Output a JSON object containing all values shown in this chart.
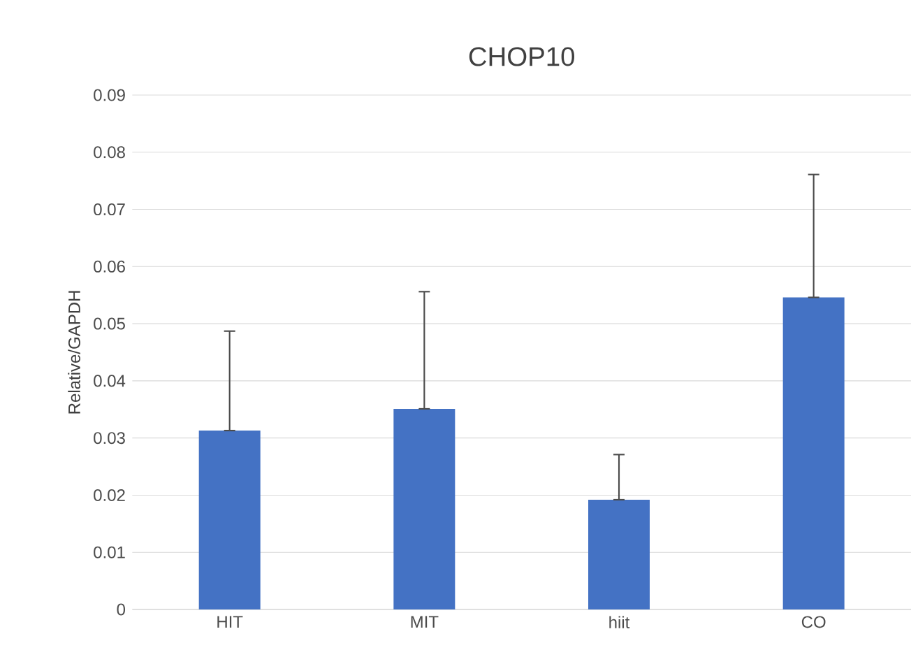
{
  "chart_data": {
    "type": "bar",
    "title": "CHOP10",
    "ylabel": "Relative/GAPDH",
    "categories": [
      "HIT",
      "MIT",
      "hiit",
      "CO"
    ],
    "values": [
      0.0313,
      0.0351,
      0.0192,
      0.0546
    ],
    "errors": [
      [
        0.0313,
        0.0487
      ],
      [
        0.0351,
        0.0556
      ],
      [
        0.0192,
        0.0271
      ],
      [
        0.0546,
        0.0761
      ]
    ],
    "color": "#4472c4",
    "ylim": [
      0,
      0.09
    ],
    "yticks": [
      0,
      0.01,
      0.02,
      0.03,
      0.04,
      0.05,
      0.06,
      0.07,
      0.08,
      0.09
    ],
    "grid": "y"
  }
}
